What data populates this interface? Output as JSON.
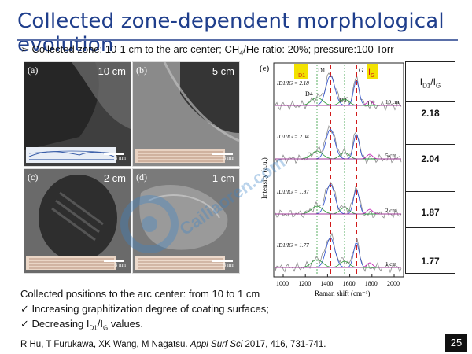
{
  "slide": {
    "title": "Collected zone-dependent morphological evolution",
    "bullet_prefix": "➢",
    "bullet_text_a": "Collected zone: 10-1 cm to the arc center; CH",
    "bullet_sub": "4",
    "bullet_text_b": "/He ratio: 20%; pressure:100 Torr",
    "page_number": "25"
  },
  "tem_panels": [
    {
      "label": "(a)",
      "zone": "10 cm",
      "scale": "5 nm"
    },
    {
      "label": "(b)",
      "zone": "5 cm",
      "scale": "5 nm"
    },
    {
      "label": "(c)",
      "zone": "2 cm",
      "scale": "5 nm"
    },
    {
      "label": "(d)",
      "zone": "1 cm",
      "scale": "5 nm"
    }
  ],
  "spectra": {
    "label": "(e)",
    "ylabel": "Intensity (a.u.)",
    "xlabel": "Raman shift (cm⁻¹)",
    "x_ticks": [
      "1000",
      "1200",
      "1400",
      "1600",
      "1800",
      "2000"
    ],
    "id1_label": "I",
    "id1_sub": "D1",
    "ig_label": "I",
    "ig_sub": "G",
    "peak_labels": [
      "D1",
      "G",
      "D4",
      "D3",
      "D2"
    ],
    "traces": [
      {
        "zone": "10 cm",
        "ratio_text": "I",
        "ratio_sub": "D1",
        "ratio_mid": "/I",
        "ratio_sub2": "G",
        "ratio_val": " = 2.18"
      },
      {
        "zone": "5 cm",
        "ratio_text": "I",
        "ratio_sub": "D1",
        "ratio_mid": "/I",
        "ratio_sub2": "G",
        "ratio_val": " = 2.04"
      },
      {
        "zone": "2 cm",
        "ratio_text": "I",
        "ratio_sub": "D1",
        "ratio_mid": "/I",
        "ratio_sub2": "G",
        "ratio_val": " = 1.87"
      },
      {
        "zone": "1 cm",
        "ratio_text": "I",
        "ratio_sub": "D1",
        "ratio_mid": "/I",
        "ratio_sub2": "G",
        "ratio_val": " = 1.77"
      }
    ]
  },
  "ratio_table": {
    "header_a": "I",
    "header_sub_a": "D1",
    "header_b": "/I",
    "header_sub_b": "G",
    "values": [
      "2.18",
      "2.04",
      "1.87",
      "1.77"
    ]
  },
  "summary": {
    "line1": "Collected positions to the arc center: from 10 to 1 cm",
    "check": "✓",
    "line2": "Increasing graphitization degree of coating surfaces;",
    "line3_a": "Decreasing I",
    "line3_sub_a": "D1",
    "line3_b": "/I",
    "line3_sub_b": "G",
    "line3_c": " values."
  },
  "reference": {
    "authors": "R Hu, T Furukawa, XK Wang, M Nagatsu. ",
    "journal": "Appl Surf Sci",
    "details": " 2017, 416, 731-741."
  },
  "watermark": {
    "text": "Cailiaoren.com"
  },
  "colors": {
    "title": "#1f3e8c",
    "highlight": "#f2e200",
    "dash_red": "#d11a1a",
    "fit_magenta": "#c21ab3",
    "fit_green": "#2f9b3a",
    "fit_blue": "#2c4ecf"
  }
}
